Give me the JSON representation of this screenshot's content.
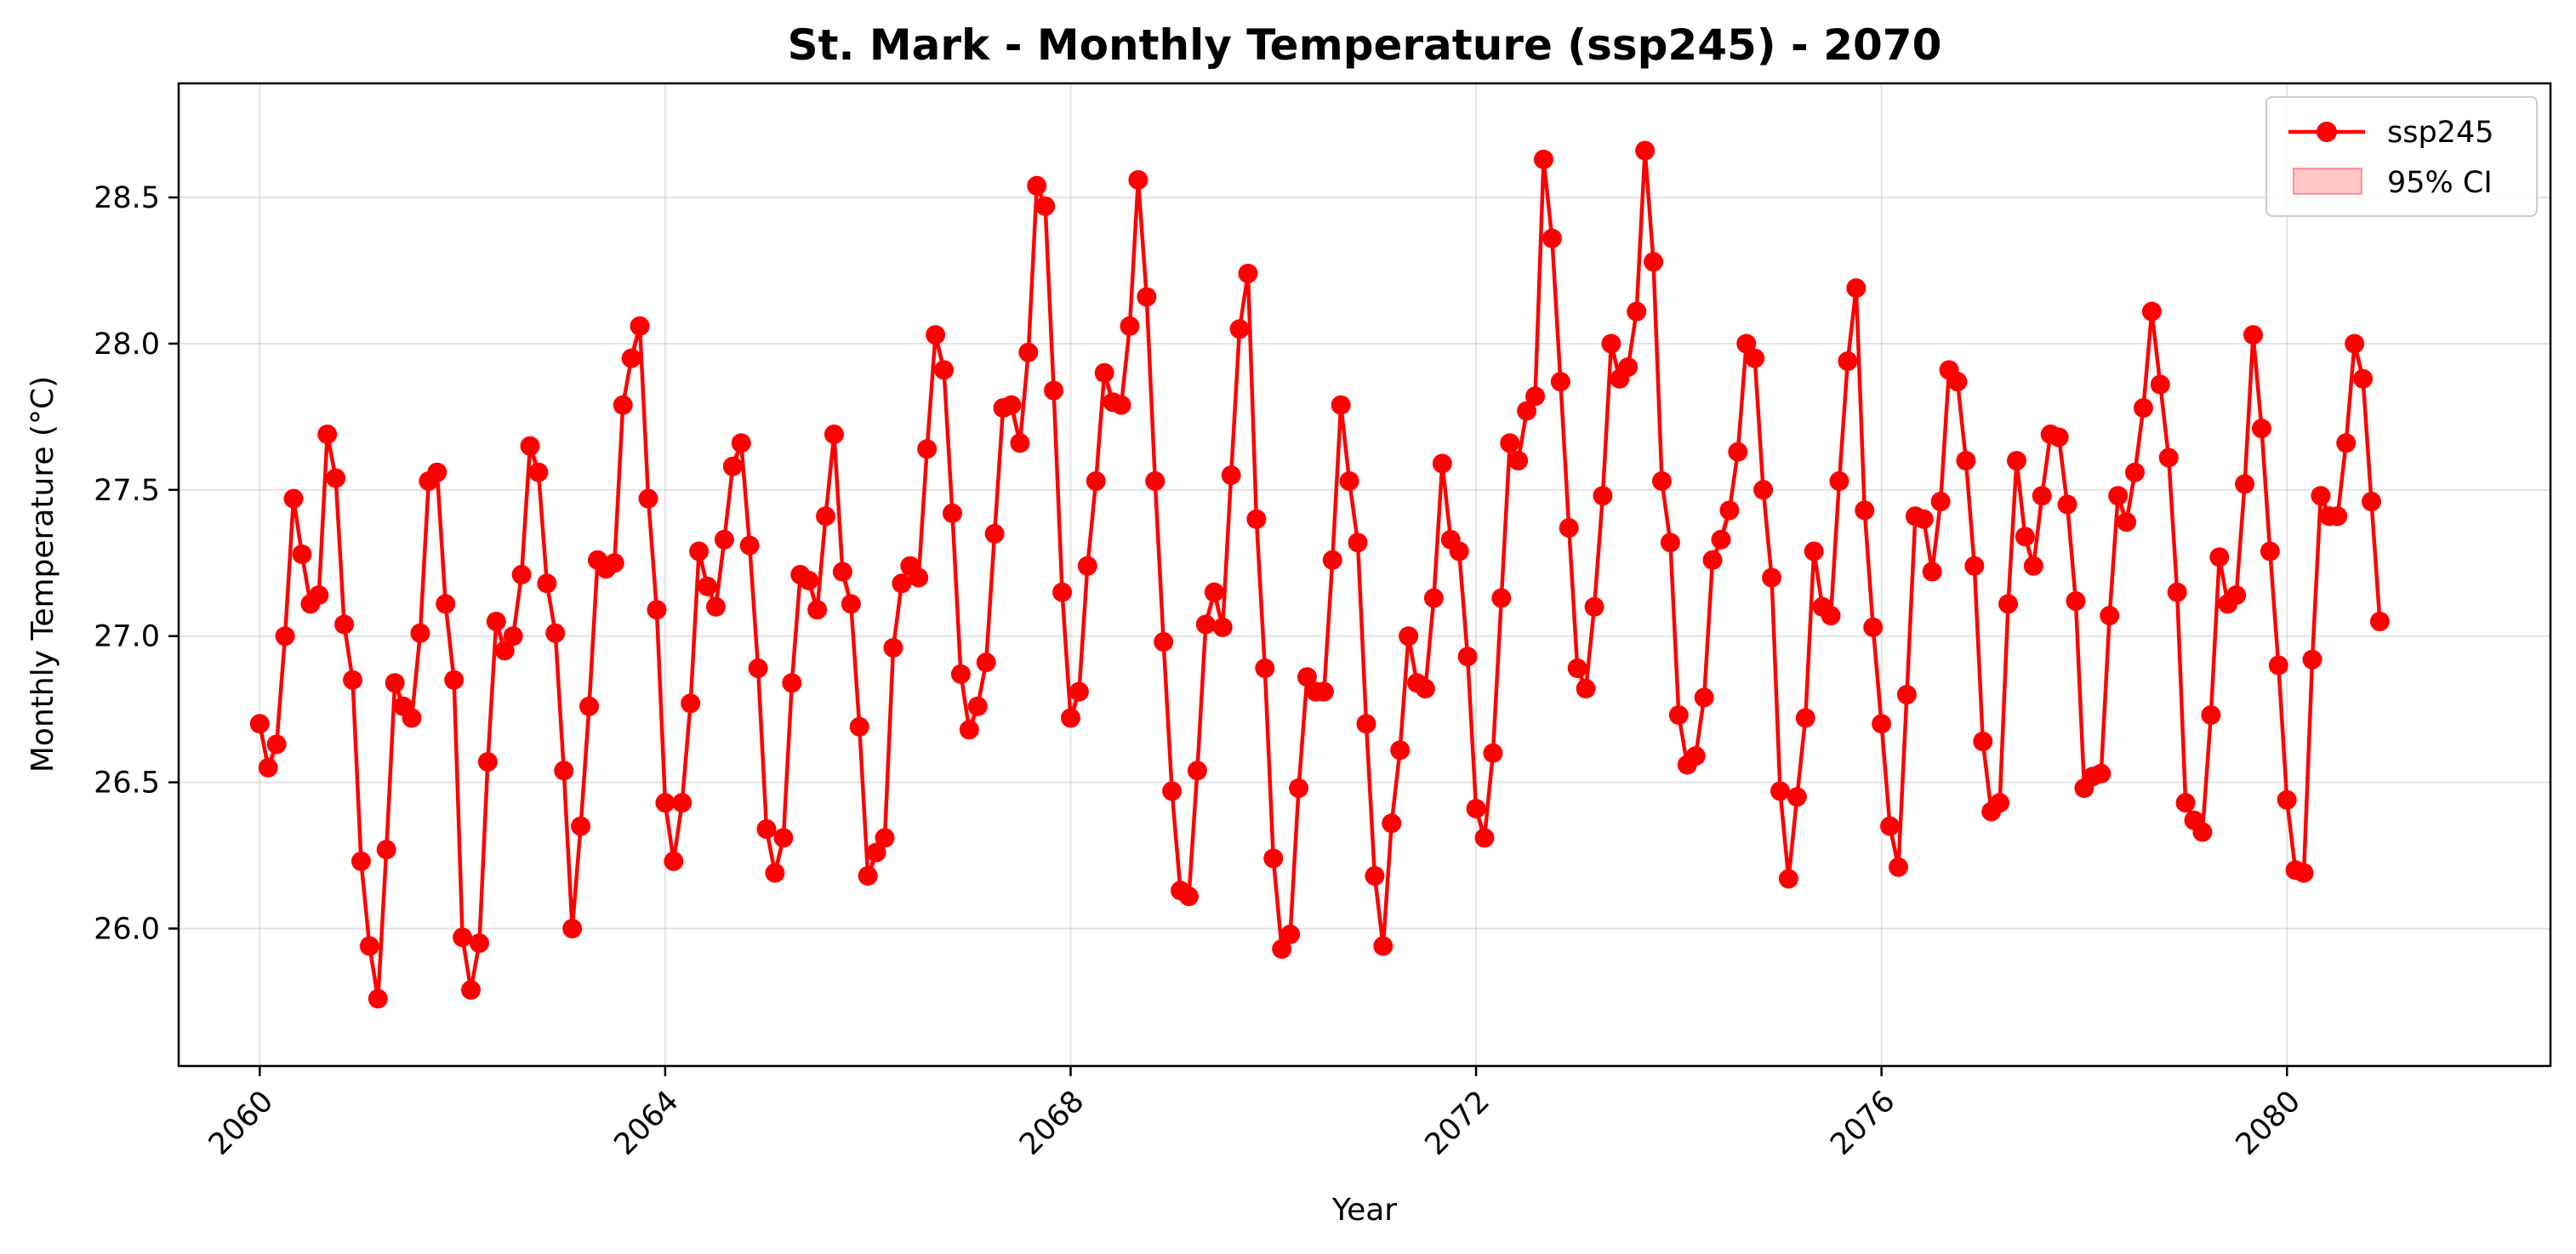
{
  "chart_data": {
    "type": "line",
    "title": "St. Mark - Monthly Temperature (ssp245) - 2070",
    "xlabel": "Year",
    "ylabel": "Monthly Temperature (°C)",
    "xlim": [
      2059.2,
      2082.6
    ],
    "ylim": [
      25.53,
      28.89
    ],
    "x_ticks": [
      2060,
      2064,
      2068,
      2072,
      2076,
      2080
    ],
    "x_tick_labels": [
      "2060",
      "2064",
      "2068",
      "2072",
      "2076",
      "2080"
    ],
    "y_ticks": [
      26.0,
      26.5,
      27.0,
      27.5,
      28.0,
      28.5
    ],
    "y_tick_labels": [
      "26.0",
      "26.5",
      "27.0",
      "27.5",
      "28.0",
      "28.5"
    ],
    "grid": true,
    "legend_position": "top-right",
    "x_start_year": 2060,
    "points_per_year": 12,
    "colors": {
      "line": "#ff0000",
      "ci_fill": "#ff0000"
    },
    "series": [
      {
        "name": "ssp245",
        "values": [
          26.7,
          26.55,
          26.63,
          27.0,
          27.47,
          27.28,
          27.11,
          27.14,
          27.69,
          27.54,
          27.04,
          26.85,
          26.23,
          25.94,
          25.76,
          26.27,
          26.84,
          26.76,
          26.72,
          27.01,
          27.53,
          27.56,
          27.11,
          26.85,
          25.97,
          25.79,
          25.95,
          26.57,
          27.05,
          26.95,
          27.0,
          27.21,
          27.65,
          27.56,
          27.18,
          27.01,
          26.54,
          26.0,
          26.35,
          26.76,
          27.26,
          27.23,
          27.25,
          27.79,
          27.95,
          28.06,
          27.47,
          27.09,
          26.43,
          26.23,
          26.43,
          26.77,
          27.29,
          27.17,
          27.1,
          27.33,
          27.58,
          27.66,
          27.31,
          26.89,
          26.34,
          26.19,
          26.31,
          26.84,
          27.21,
          27.19,
          27.09,
          27.41,
          27.69,
          27.22,
          27.11,
          26.69,
          26.18,
          26.26,
          26.31,
          26.96,
          27.18,
          27.24,
          27.2,
          27.64,
          28.03,
          27.91,
          27.42,
          26.87,
          26.68,
          26.76,
          26.91,
          27.35,
          27.78,
          27.79,
          27.66,
          27.97,
          28.54,
          28.47,
          27.84,
          27.15,
          26.72,
          26.81,
          27.24,
          27.53,
          27.9,
          27.8,
          27.79,
          28.06,
          28.56,
          28.16,
          27.53,
          26.98,
          26.47,
          26.13,
          26.11,
          26.54,
          27.04,
          27.15,
          27.03,
          27.55,
          28.05,
          28.24,
          27.4,
          26.89,
          26.24,
          25.93,
          25.98,
          26.48,
          26.86,
          26.81,
          26.81,
          27.26,
          27.79,
          27.53,
          27.32,
          26.7,
          26.18,
          25.94,
          26.36,
          26.61,
          27.0,
          26.84,
          26.82,
          27.13,
          27.59,
          27.33,
          27.29,
          26.93,
          26.41,
          26.31,
          26.6,
          27.13,
          27.66,
          27.6,
          27.77,
          27.82,
          28.63,
          28.36,
          27.87,
          27.37,
          26.89,
          26.82,
          27.1,
          27.48,
          28.0,
          27.88,
          27.92,
          28.11,
          28.66,
          28.28,
          27.53,
          27.32,
          26.73,
          26.56,
          26.59,
          26.79,
          27.26,
          27.33,
          27.43,
          27.63,
          28.0,
          27.95,
          27.5,
          27.2,
          26.47,
          26.17,
          26.45,
          26.72,
          27.29,
          27.1,
          27.07,
          27.53,
          27.94,
          28.19,
          27.43,
          27.03,
          26.7,
          26.35,
          26.21,
          26.8,
          27.41,
          27.4,
          27.22,
          27.46,
          27.91,
          27.87,
          27.6,
          27.24,
          26.64,
          26.4,
          26.43,
          27.11,
          27.6,
          27.34,
          27.24,
          27.48,
          27.69,
          27.68,
          27.45,
          27.12,
          26.48,
          26.52,
          26.53,
          27.07,
          27.48,
          27.39,
          27.56,
          27.78,
          28.11,
          27.86,
          27.61,
          27.15,
          26.43,
          26.37,
          26.33,
          26.73,
          27.27,
          27.11,
          27.14,
          27.52,
          28.03,
          27.71,
          27.29,
          26.9,
          26.44,
          26.2,
          26.19,
          26.92,
          27.48,
          27.41,
          27.41,
          27.66,
          28.0,
          27.88,
          27.46,
          27.05
        ]
      }
    ],
    "legend": {
      "line_label": "ssp245",
      "ci_label": "95% CI"
    }
  }
}
